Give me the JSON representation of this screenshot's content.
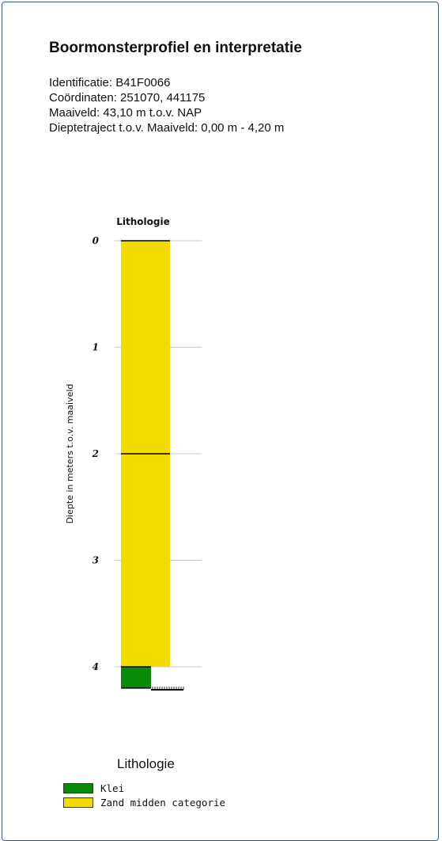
{
  "header": {
    "title": "Boormonsterprofiel en interpretatie",
    "lines": [
      "Identificatie: B41F0066",
      "Coördinaten: 251070, 441175",
      "Maaiveld: 43,10 m t.o.v. NAP",
      "Dieptetraject t.o.v. Maaiveld: 0,00 m - 4,20 m"
    ]
  },
  "chart_data": {
    "type": "bar",
    "title": "Lithologie",
    "ylabel": "Diepte in meters t.o.v. maaiveld",
    "ylim": [
      0,
      4.2
    ],
    "yticks": [
      "0",
      "1",
      "2",
      "3",
      "4"
    ],
    "grid": true,
    "layers": [
      {
        "top": 0.0,
        "bottom": 2.0,
        "lithology": "Zand midden categorie",
        "color": "#f2dc00"
      },
      {
        "top": 2.0,
        "bottom": 4.0,
        "lithology": "Zand midden categorie",
        "color": "#f2dc00"
      },
      {
        "top": 4.0,
        "bottom": 4.2,
        "lithology": "Klei",
        "color": "#0a8a0a"
      }
    ]
  },
  "legend": {
    "title": "Lithologie",
    "items": [
      {
        "label": "Klei",
        "color": "#0a8a0a"
      },
      {
        "label": "Zand midden categorie",
        "color": "#f2dc00"
      }
    ]
  }
}
